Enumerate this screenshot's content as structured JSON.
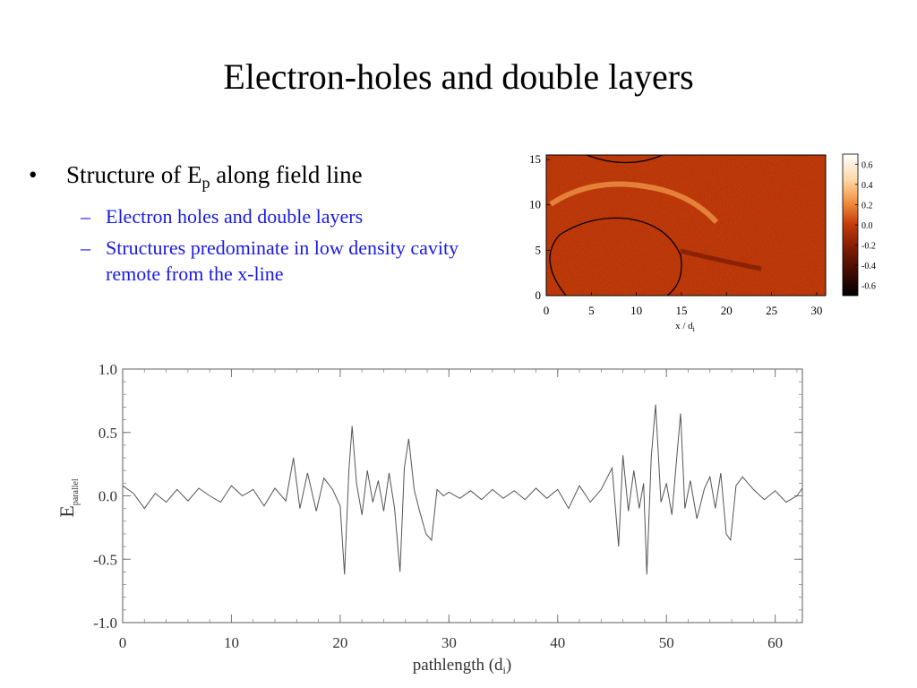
{
  "slide": {
    "title": "Electron-holes and double layers",
    "bullets": {
      "main_prefix": "Structure of E",
      "main_sub": "p",
      "main_suffix": " along field line",
      "sub1": "Electron holes and double layers",
      "sub2": "Structures predominate in low density cavity remote from the x-line"
    },
    "colors": {
      "subbullet": "#1a1ae6",
      "heatmap_base": "#c23a0a"
    }
  },
  "chart_data": [
    {
      "type": "heatmap",
      "x_ticks": [
        "0",
        "5",
        "10",
        "15",
        "20",
        "25",
        "30"
      ],
      "y_ticks": [
        "0",
        "5",
        "10",
        "15"
      ],
      "xlabel_prefix": "x / d",
      "xlabel_sub": "i",
      "xlim": [
        0,
        31
      ],
      "ylim": [
        0,
        15.5
      ],
      "colorbar_ticks": [
        "0.6",
        "0.4",
        "0.2",
        "0.0",
        "-0.2",
        "-0.4",
        "-0.6"
      ],
      "colorbar_range": [
        -0.7,
        0.7
      ]
    },
    {
      "type": "line",
      "x_ticks": [
        "0",
        "10",
        "20",
        "30",
        "40",
        "50",
        "60"
      ],
      "y_ticks": [
        "1.0",
        "0.5",
        "0.0",
        "-0.5",
        "-1.0"
      ],
      "xlabel_prefix": "pathlength (d",
      "xlabel_sub": "i",
      "xlabel_suffix": ")",
      "ylabel_main": "E",
      "ylabel_sub": "parallel",
      "xlim": [
        0,
        62.5
      ],
      "ylim": [
        -1.0,
        1.0
      ],
      "series": [
        {
          "x": [
            0,
            1,
            2,
            3,
            4,
            5,
            6,
            7,
            8,
            9,
            10,
            11,
            12,
            13,
            14,
            15,
            15.7,
            16.3,
            17,
            17.8,
            18.5,
            19.3,
            20,
            20.4,
            20.8,
            21.1,
            21.5,
            22,
            22.5,
            23,
            23.5,
            24,
            24.5,
            25,
            25.5,
            25.9,
            26.3,
            26.8,
            27.3,
            27.9,
            28.4,
            28.9,
            29.5,
            30,
            31,
            32,
            33,
            34,
            35,
            36,
            37,
            38,
            39,
            40,
            41,
            42,
            43,
            44,
            45,
            45.6,
            46,
            46.5,
            47,
            47.5,
            47.9,
            48.2,
            48.6,
            49,
            49.5,
            50,
            50.5,
            51,
            51.3,
            51.7,
            52.2,
            52.8,
            53.5,
            54,
            54.5,
            55,
            55.5,
            55.9,
            56.4,
            57,
            58,
            59,
            60,
            61,
            62,
            62.5
          ],
          "y": [
            0.08,
            0.02,
            -0.1,
            0.02,
            -0.05,
            0.05,
            -0.04,
            0.06,
            0.0,
            -0.05,
            0.08,
            0.0,
            0.05,
            -0.08,
            0.06,
            -0.04,
            0.3,
            -0.1,
            0.18,
            -0.12,
            0.14,
            0.05,
            -0.08,
            -0.62,
            0.2,
            0.55,
            0.1,
            -0.15,
            0.2,
            -0.05,
            0.12,
            -0.12,
            0.18,
            -0.1,
            -0.6,
            0.22,
            0.45,
            0.05,
            -0.12,
            -0.3,
            -0.35,
            0.05,
            0.0,
            0.03,
            -0.02,
            0.04,
            -0.03,
            0.05,
            -0.02,
            0.04,
            -0.03,
            0.06,
            -0.02,
            0.05,
            -0.1,
            0.08,
            -0.05,
            0.05,
            0.22,
            -0.4,
            0.32,
            -0.12,
            0.2,
            -0.1,
            0.1,
            -0.62,
            0.3,
            0.72,
            -0.05,
            0.1,
            -0.15,
            0.35,
            0.65,
            -0.1,
            0.12,
            -0.18,
            0.06,
            0.15,
            -0.1,
            0.18,
            -0.3,
            -0.35,
            0.08,
            0.15,
            0.05,
            -0.03,
            0.04,
            -0.05,
            0.0,
            0.06
          ]
        }
      ]
    }
  ]
}
